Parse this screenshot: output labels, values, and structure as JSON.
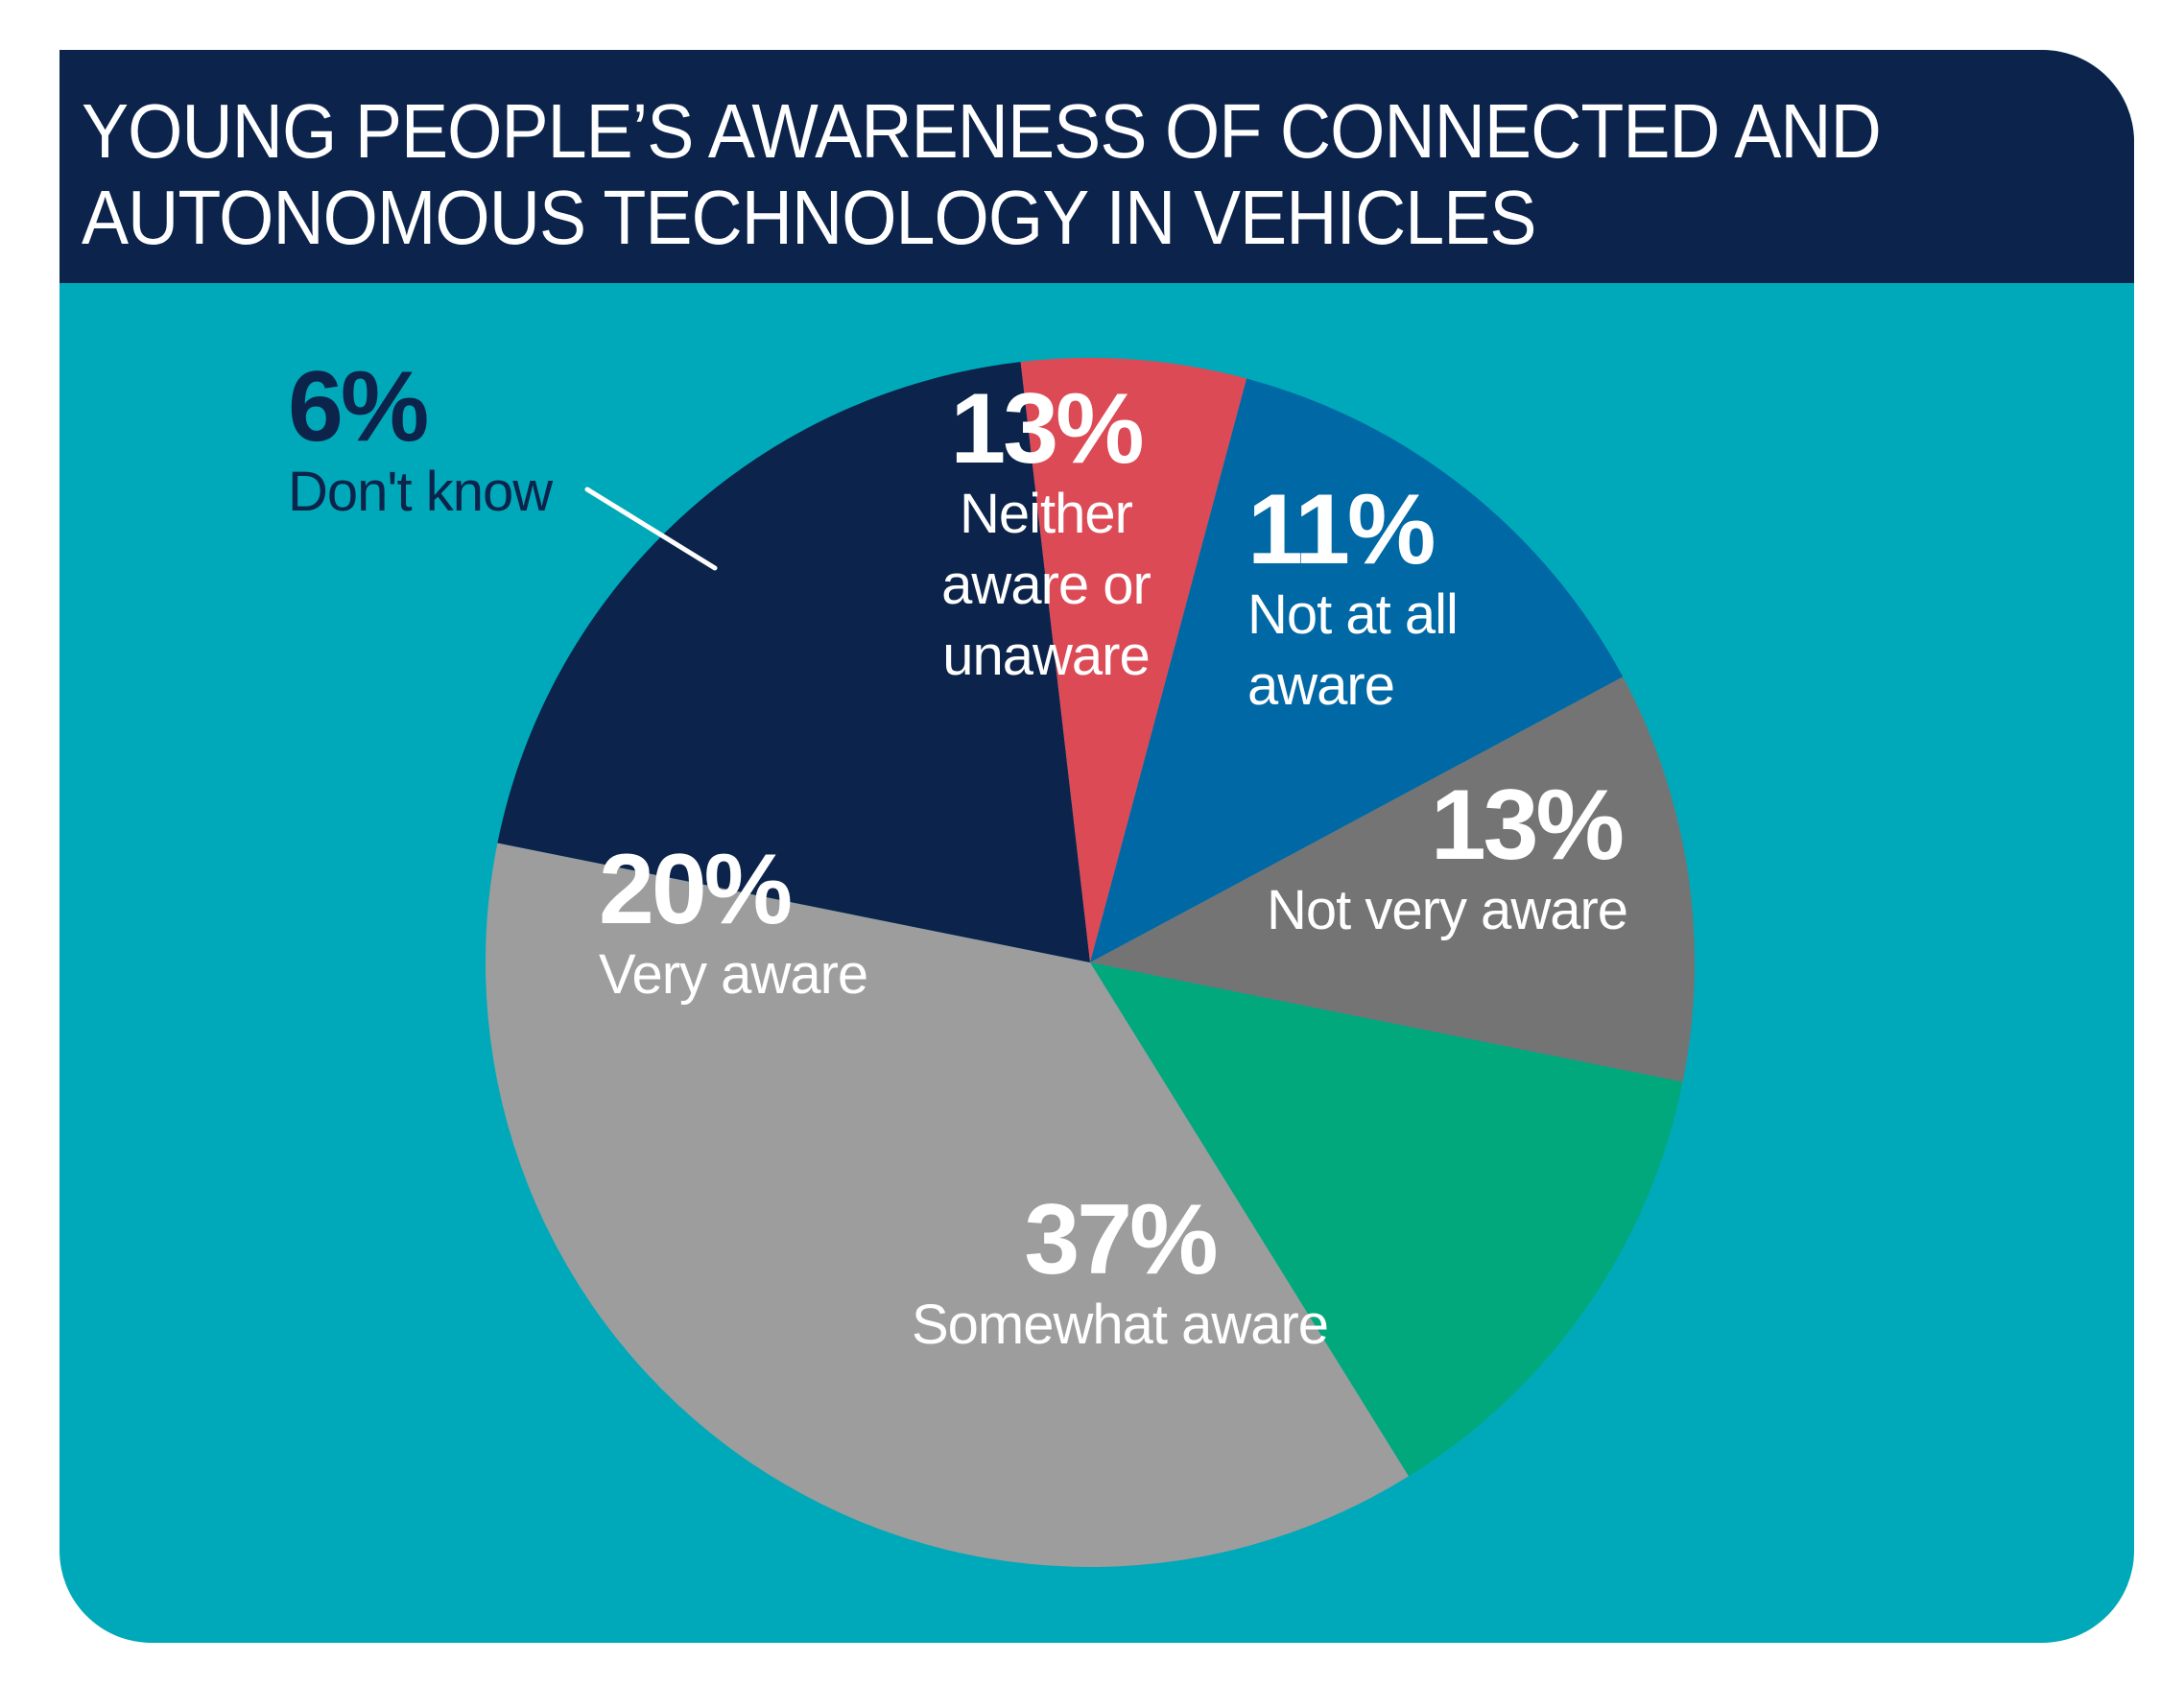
{
  "chart_data": {
    "type": "pie",
    "title": "YOUNG PEOPLE’S AWARENESS OF CONNECTED AND AUTONOMOUS TECHNOLOGY IN VEHICLES",
    "unit": "%",
    "slices": [
      {
        "label": "Neither aware or unaware",
        "value": 13,
        "value_label": "13%",
        "color": "#0068a5",
        "label_color": "#ffffff"
      },
      {
        "label": "Not at all aware",
        "value": 11,
        "value_label": "11%",
        "color": "#747474",
        "label_color": "#ffffff"
      },
      {
        "label": "Not very aware",
        "value": 13,
        "value_label": "13%",
        "color": "#00a87c",
        "label_color": "#ffffff"
      },
      {
        "label": "Somewhat aware",
        "value": 37,
        "value_label": "37%",
        "color": "#9d9d9d",
        "label_color": "#ffffff"
      },
      {
        "label": "Very aware",
        "value": 20,
        "value_label": "20%",
        "color": "#0c234b",
        "label_color": "#ffffff"
      },
      {
        "label": "Don't know",
        "value": 6,
        "value_label": "6%",
        "color": "#dc4a56",
        "label_color": "#0c234b"
      }
    ]
  },
  "colors": {
    "header_background": "#0c234b",
    "panel_background": "#00a9b9",
    "leader_line": "#ffffff"
  }
}
